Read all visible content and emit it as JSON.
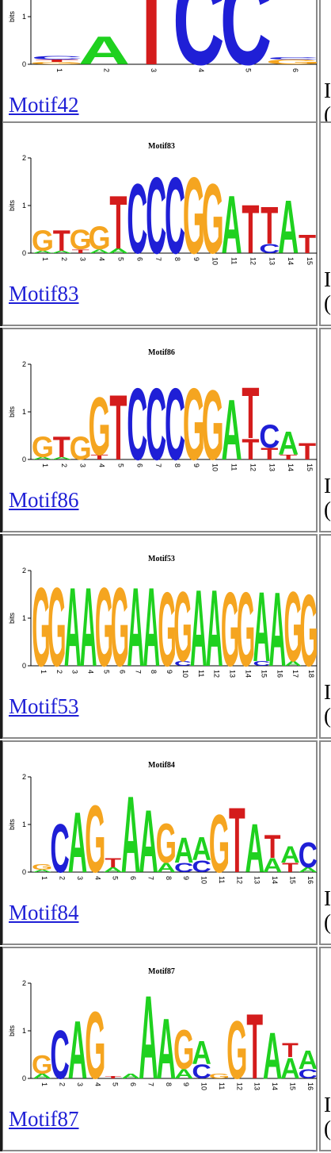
{
  "colors": {
    "A": "#1fd11f",
    "C": "#1f1fd6",
    "G": "#f5a520",
    "T": "#d41c1c",
    "link": "#1f1fd6",
    "border": "#8a8a8a"
  },
  "axis": {
    "label": "bits",
    "ticks": [
      "0",
      "1",
      "2"
    ]
  },
  "motifs": [
    {
      "title": "",
      "link": "Motif42",
      "right_text": [
        "I",
        "("
      ],
      "positions": [
        "1",
        "2",
        "3",
        "4",
        "5",
        "6"
      ],
      "columns": [
        [
          [
            "G",
            0.05
          ],
          [
            "T",
            0.05
          ],
          [
            "C",
            0.08
          ]
        ],
        [
          [
            "A",
            0.6
          ]
        ],
        [
          [
            "T",
            1.9
          ]
        ],
        [
          [
            "C",
            1.9
          ]
        ],
        [
          [
            "C",
            1.9
          ]
        ],
        [
          [
            "G",
            0.1
          ],
          [
            "C",
            0.05
          ]
        ]
      ]
    },
    {
      "title": "Motif83",
      "link": "Motif83",
      "right_text": [
        "I",
        "("
      ],
      "positions": [
        "1",
        "2",
        "3",
        "4",
        "5",
        "6",
        "7",
        "8",
        "9",
        "10",
        "11",
        "12",
        "13",
        "14",
        "15"
      ],
      "columns": [
        [
          [
            "A",
            0.05
          ],
          [
            "G",
            0.45
          ]
        ],
        [
          [
            "A",
            0.05
          ],
          [
            "T",
            0.45
          ]
        ],
        [
          [
            "T",
            0.08
          ],
          [
            "G",
            0.42
          ]
        ],
        [
          [
            "A",
            0.08
          ],
          [
            "G",
            0.5
          ]
        ],
        [
          [
            "A",
            0.1
          ],
          [
            "T",
            1.15
          ]
        ],
        [
          [
            "C",
            1.5
          ]
        ],
        [
          [
            "C",
            1.65
          ]
        ],
        [
          [
            "C",
            1.65
          ]
        ],
        [
          [
            "G",
            1.65
          ]
        ],
        [
          [
            "G",
            1.5
          ]
        ],
        [
          [
            "A",
            1.25
          ]
        ],
        [
          [
            "T",
            1.05
          ]
        ],
        [
          [
            "C",
            0.2
          ],
          [
            "T",
            0.8
          ]
        ],
        [
          [
            "A",
            1.15
          ]
        ],
        [
          [
            "T",
            0.4
          ]
        ]
      ]
    },
    {
      "title": "Motif86",
      "link": "Motif86",
      "right_text": [
        "I",
        "("
      ],
      "positions": [
        "1",
        "2",
        "3",
        "4",
        "5",
        "6",
        "7",
        "8",
        "9",
        "10",
        "11",
        "12",
        "13",
        "14",
        "15"
      ],
      "columns": [
        [
          [
            "A",
            0.05
          ],
          [
            "G",
            0.45
          ]
        ],
        [
          [
            "A",
            0.05
          ],
          [
            "T",
            0.45
          ]
        ],
        [
          [
            "G",
            0.5
          ]
        ],
        [
          [
            "T",
            0.1
          ],
          [
            "G",
            1.25
          ]
        ],
        [
          [
            "T",
            1.4
          ]
        ],
        [
          [
            "C",
            1.55
          ]
        ],
        [
          [
            "C",
            1.55
          ]
        ],
        [
          [
            "C",
            1.55
          ]
        ],
        [
          [
            "G",
            1.55
          ]
        ],
        [
          [
            "G",
            1.5
          ]
        ],
        [
          [
            "A",
            1.3
          ]
        ],
        [
          [
            "T",
            0.45
          ],
          [
            "T",
            1.1
          ]
        ],
        [
          [
            "T",
            0.25
          ],
          [
            "C",
            0.5
          ]
        ],
        [
          [
            "T",
            0.1
          ],
          [
            "A",
            0.5
          ]
        ],
        [
          [
            "T",
            0.35
          ]
        ]
      ]
    },
    {
      "title": "Motif53",
      "link": "Motif53",
      "right_text": [
        "I",
        "("
      ],
      "positions": [
        "1",
        "2",
        "3",
        "4",
        "5",
        "6",
        "7",
        "8",
        "9",
        "10",
        "11",
        "12",
        "13",
        "14",
        "15",
        "16",
        "17",
        "18"
      ],
      "columns": [
        [
          [
            "G",
            1.7
          ]
        ],
        [
          [
            "G",
            1.7
          ]
        ],
        [
          [
            "A",
            1.7
          ]
        ],
        [
          [
            "A",
            1.7
          ]
        ],
        [
          [
            "G",
            1.7
          ]
        ],
        [
          [
            "G",
            1.7
          ]
        ],
        [
          [
            "A",
            1.7
          ]
        ],
        [
          [
            "A",
            1.7
          ]
        ],
        [
          [
            "G",
            1.6
          ]
        ],
        [
          [
            "C",
            0.1
          ],
          [
            "G",
            1.5
          ]
        ],
        [
          [
            "A",
            1.65
          ]
        ],
        [
          [
            "A",
            1.65
          ]
        ],
        [
          [
            "G",
            1.6
          ]
        ],
        [
          [
            "G",
            1.6
          ]
        ],
        [
          [
            "C",
            0.1
          ],
          [
            "A",
            1.5
          ]
        ],
        [
          [
            "A",
            1.6
          ]
        ],
        [
          [
            "A",
            0.1
          ],
          [
            "G",
            1.5
          ]
        ],
        [
          [
            "G",
            1.55
          ]
        ]
      ]
    },
    {
      "title": "Motif84",
      "link": "Motif84",
      "right_text": [
        "I",
        "("
      ],
      "positions": [
        "1",
        "2",
        "3",
        "4",
        "5",
        "6",
        "7",
        "8",
        "9",
        "10",
        "11",
        "12",
        "13",
        "14",
        "15",
        "16"
      ],
      "columns": [
        [
          [
            "A",
            0.05
          ],
          [
            "G",
            0.12
          ]
        ],
        [
          [
            "C",
            1.05
          ]
        ],
        [
          [
            "A",
            1.3
          ]
        ],
        [
          [
            "G",
            1.45
          ]
        ],
        [
          [
            "A",
            0.1
          ],
          [
            "T",
            0.2
          ]
        ],
        [
          [
            "A",
            1.65
          ]
        ],
        [
          [
            "A",
            1.35
          ]
        ],
        [
          [
            "A",
            0.2
          ],
          [
            "G",
            0.85
          ]
        ],
        [
          [
            "C",
            0.2
          ],
          [
            "A",
            0.55
          ]
        ],
        [
          [
            "C",
            0.25
          ],
          [
            "A",
            0.5
          ]
        ],
        [
          [
            "G",
            1.25
          ]
        ],
        [
          [
            "T",
            1.4
          ]
        ],
        [
          [
            "A",
            1.05
          ]
        ],
        [
          [
            "A",
            0.3
          ],
          [
            "T",
            0.5
          ]
        ],
        [
          [
            "T",
            0.2
          ],
          [
            "A",
            0.35
          ]
        ],
        [
          [
            "A",
            0.1
          ],
          [
            "C",
            0.55
          ]
        ]
      ]
    },
    {
      "title": "Motif87",
      "link": "Motif87",
      "right_text": [
        "I",
        "("
      ],
      "positions": [
        "1",
        "2",
        "3",
        "4",
        "5",
        "6",
        "7",
        "8",
        "9",
        "10",
        "11",
        "12",
        "13",
        "14",
        "15",
        "16"
      ],
      "columns": [
        [
          [
            "A",
            0.1
          ],
          [
            "G",
            0.4
          ]
        ],
        [
          [
            "C",
            1.05
          ]
        ],
        [
          [
            "A",
            1.25
          ]
        ],
        [
          [
            "G",
            1.45
          ]
        ],
        [
          [
            "T",
            0.05
          ]
        ],
        [
          [
            "A",
            0.1
          ]
        ],
        [
          [
            "A",
            1.8
          ]
        ],
        [
          [
            "A",
            1.3
          ]
        ],
        [
          [
            "A",
            0.2
          ],
          [
            "G",
            0.85
          ]
        ],
        [
          [
            "C",
            0.3
          ],
          [
            "A",
            0.5
          ]
        ],
        [
          [
            "G",
            0.1
          ]
        ],
        [
          [
            "G",
            1.25
          ]
        ],
        [
          [
            "T",
            1.4
          ]
        ],
        [
          [
            "A",
            1.0
          ]
        ],
        [
          [
            "A",
            0.45
          ],
          [
            "T",
            0.3
          ]
        ],
        [
          [
            "C",
            0.2
          ],
          [
            "A",
            0.4
          ]
        ]
      ]
    }
  ]
}
